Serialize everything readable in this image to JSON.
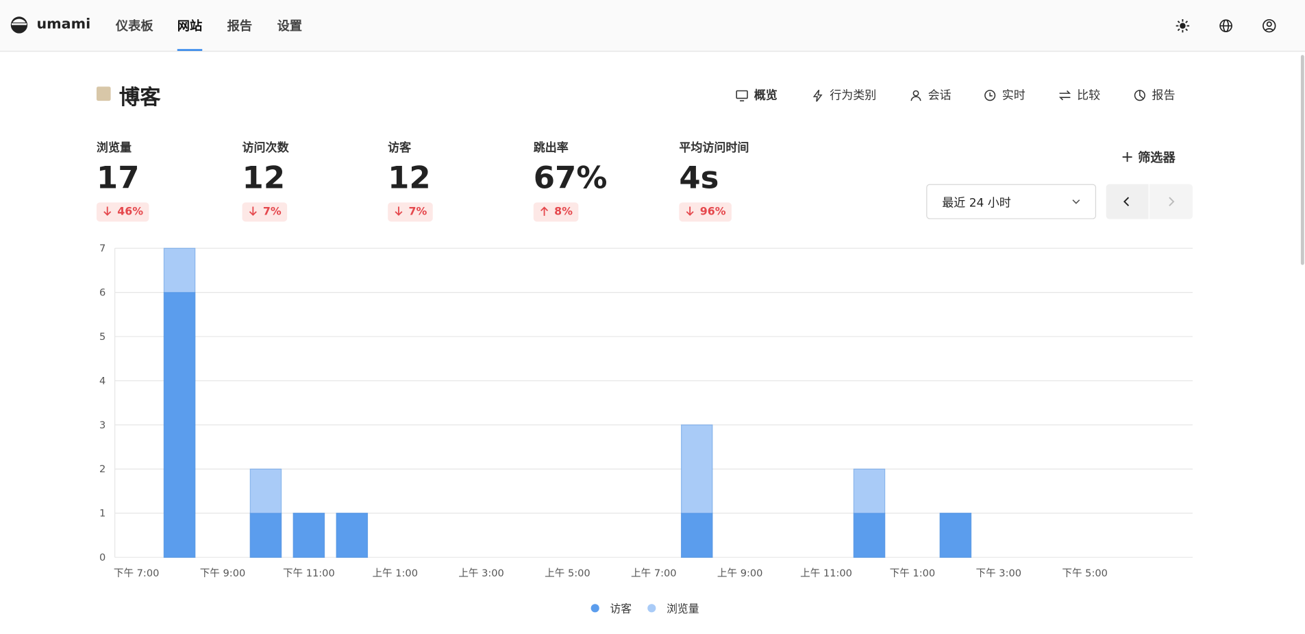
{
  "nav": {
    "brand": "umami",
    "items": [
      "仪表板",
      "网站",
      "报告",
      "设置"
    ],
    "active": 1
  },
  "site": {
    "name": "博客",
    "tabs": [
      "概览",
      "行为类别",
      "会话",
      "实时",
      "比较",
      "报告"
    ],
    "active_tab": 0
  },
  "metrics": [
    {
      "label": "浏览量",
      "value": "17",
      "change": "46%",
      "trend": "down"
    },
    {
      "label": "访问次数",
      "value": "12",
      "change": "7%",
      "trend": "down"
    },
    {
      "label": "访客",
      "value": "12",
      "change": "7%",
      "trend": "down"
    },
    {
      "label": "跳出率",
      "value": "67%",
      "change": "8%",
      "trend": "up"
    },
    {
      "label": "平均访问时间",
      "value": "4s",
      "change": "96%",
      "trend": "down"
    }
  ],
  "filter": "筛选器",
  "date_range": "最近 24 小时",
  "chart": {
    "type": "bar",
    "categories": [
      "下午 7:00",
      null,
      "下午 9:00",
      null,
      "下午 11:00",
      null,
      "上午 1:00",
      null,
      "上午 3:00",
      null,
      "上午 5:00",
      null,
      "上午 7:00",
      null,
      "上午 9:00",
      null,
      "上午 11:00",
      null,
      "下午 1:00",
      null,
      "下午 3:00",
      null,
      "下午 5:00",
      null,
      null
    ],
    "series": [
      {
        "name": "访客",
        "color": "#5b9ded",
        "values": [
          0,
          6,
          0,
          1,
          1,
          1,
          0,
          0,
          0,
          0,
          0,
          0,
          0,
          1,
          0,
          0,
          0,
          1,
          0,
          1,
          0,
          0,
          0,
          0,
          0
        ]
      },
      {
        "name": "浏览量",
        "color": "#a9cbf7",
        "values": [
          0,
          7,
          0,
          2,
          1,
          1,
          0,
          0,
          0,
          0,
          0,
          0,
          0,
          3,
          0,
          0,
          0,
          2,
          0,
          1,
          0,
          0,
          0,
          0,
          0
        ]
      }
    ],
    "ylim": [
      0,
      7
    ],
    "yticks": [
      0,
      1,
      2,
      3,
      4,
      5,
      6,
      7
    ],
    "grid": true
  }
}
